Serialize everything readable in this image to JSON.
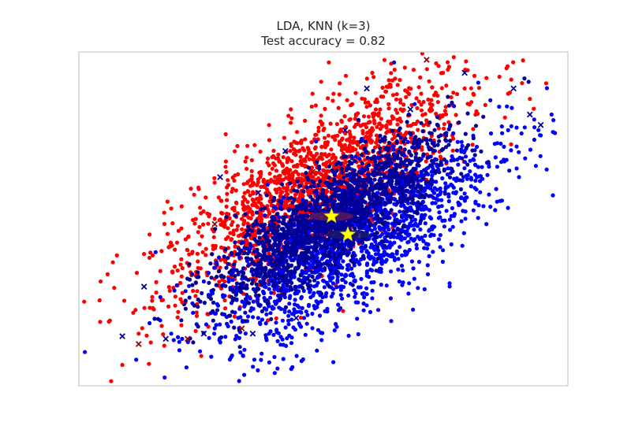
{
  "chart_data": {
    "type": "scatter",
    "title": "LDA, KNN (k=3)",
    "subtitle": "Test accuracy = 0.82",
    "xlabel": "",
    "ylabel": "",
    "xlim": [
      -4.5,
      4.5
    ],
    "ylim": [
      -3.2,
      3.2
    ],
    "grid": false,
    "axes_ticks_visible": false,
    "axes_frame_color": "#cccccc",
    "colors": {
      "class_0": "#ff0000",
      "class_1": "#0000ff",
      "class_0_misclassified": "#990000",
      "class_1_misclassified": "#000099",
      "class_mean": "#ffff00"
    },
    "series": [
      {
        "class": 0,
        "marker": "dot",
        "description": "correctly classified",
        "points": [
          [
            -4.1,
            -1.2
          ],
          [
            -3.8,
            -0.7
          ],
          [
            -3.5,
            -1.8
          ],
          [
            -3.2,
            -0.3
          ],
          [
            -3.0,
            -1.0
          ],
          [
            -2.8,
            0.2
          ],
          [
            -2.5,
            -0.6
          ],
          [
            -2.3,
            0.6
          ],
          [
            -2.0,
            0.0
          ],
          [
            -1.8,
            1.0
          ],
          [
            -1.6,
            0.3
          ],
          [
            -1.4,
            1.4
          ],
          [
            -1.2,
            0.7
          ],
          [
            -1.0,
            1.8
          ],
          [
            -0.8,
            1.1
          ],
          [
            -0.6,
            2.1
          ],
          [
            -0.4,
            1.5
          ],
          [
            -0.2,
            2.4
          ],
          [
            0.0,
            1.7
          ],
          [
            0.3,
            2.6
          ],
          [
            0.6,
            2.0
          ],
          [
            0.9,
            2.8
          ],
          [
            1.2,
            2.2
          ],
          [
            1.5,
            2.9
          ],
          [
            1.8,
            2.4
          ],
          [
            2.2,
            2.8
          ],
          [
            2.6,
            2.5
          ],
          [
            3.0,
            2.7
          ],
          [
            3.4,
            2.4
          ],
          [
            3.8,
            2.3
          ],
          [
            4.1,
            2.6
          ],
          [
            2.8,
            2.0
          ],
          [
            1.0,
            1.4
          ],
          [
            -0.5,
            0.9
          ],
          [
            -2.6,
            -1.6
          ],
          [
            -3.4,
            -2.2
          ],
          [
            -3.7,
            -2.8
          ],
          [
            0.1,
            3.0
          ],
          [
            2.4,
            3.1
          ],
          [
            -1.5,
            -0.2
          ]
        ]
      },
      {
        "class": 1,
        "marker": "dot",
        "description": "correctly classified",
        "points": [
          [
            -3.2,
            -2.0
          ],
          [
            -2.8,
            -2.2
          ],
          [
            -2.4,
            -1.8
          ],
          [
            -2.0,
            -2.1
          ],
          [
            -1.6,
            -1.4
          ],
          [
            -1.2,
            -1.9
          ],
          [
            -0.8,
            -1.0
          ],
          [
            -0.4,
            -1.5
          ],
          [
            0.0,
            -0.6
          ],
          [
            0.4,
            -1.1
          ],
          [
            0.8,
            -0.2
          ],
          [
            1.2,
            -0.7
          ],
          [
            1.6,
            0.2
          ],
          [
            2.0,
            -0.2
          ],
          [
            2.4,
            0.6
          ],
          [
            2.8,
            0.3
          ],
          [
            3.2,
            1.0
          ],
          [
            3.6,
            0.8
          ],
          [
            4.0,
            1.6
          ],
          [
            3.4,
            1.7
          ],
          [
            2.6,
            1.3
          ],
          [
            1.8,
            0.9
          ],
          [
            1.0,
            0.5
          ],
          [
            0.2,
            0.1
          ],
          [
            -0.6,
            -0.4
          ],
          [
            -1.4,
            -0.8
          ],
          [
            -2.2,
            -1.2
          ],
          [
            -3.0,
            -1.5
          ],
          [
            0.6,
            -1.6
          ],
          [
            1.4,
            -1.2
          ],
          [
            2.2,
            -0.6
          ],
          [
            3.0,
            -0.1
          ],
          [
            -1.0,
            -2.2
          ],
          [
            -2.6,
            -2.3
          ],
          [
            1.3,
            3.0
          ],
          [
            4.2,
            2.0
          ]
        ]
      },
      {
        "class": 0,
        "marker": "x",
        "description": "misclassified",
        "points": [
          [
            -3.4,
            -2.4
          ],
          [
            -2.5,
            -2.3
          ],
          [
            -1.5,
            -2.1
          ],
          [
            1.9,
            3.05
          ],
          [
            -2.0,
            -0.1
          ],
          [
            -0.2,
            0.9
          ]
        ]
      },
      {
        "class": 1,
        "marker": "x",
        "description": "misclassified",
        "points": [
          [
            -3.7,
            -2.25
          ],
          [
            -3.3,
            -1.3
          ],
          [
            -2.9,
            -2.3
          ],
          [
            -2.2,
            -2.2
          ],
          [
            -1.3,
            -2.2
          ],
          [
            -0.5,
            -1.9
          ],
          [
            -1.9,
            0.8
          ],
          [
            -0.7,
            1.3
          ],
          [
            0.8,
            2.5
          ],
          [
            2.6,
            2.8
          ],
          [
            3.5,
            2.5
          ],
          [
            3.8,
            2.0
          ],
          [
            4.0,
            1.8
          ],
          [
            -1.2,
            0.5
          ],
          [
            0.4,
            1.7
          ],
          [
            1.6,
            2.1
          ]
        ]
      },
      {
        "class": "means",
        "marker": "star",
        "description": "class means",
        "points": [
          [
            0.15,
            0.05
          ],
          [
            0.45,
            -0.3
          ]
        ]
      }
    ]
  }
}
